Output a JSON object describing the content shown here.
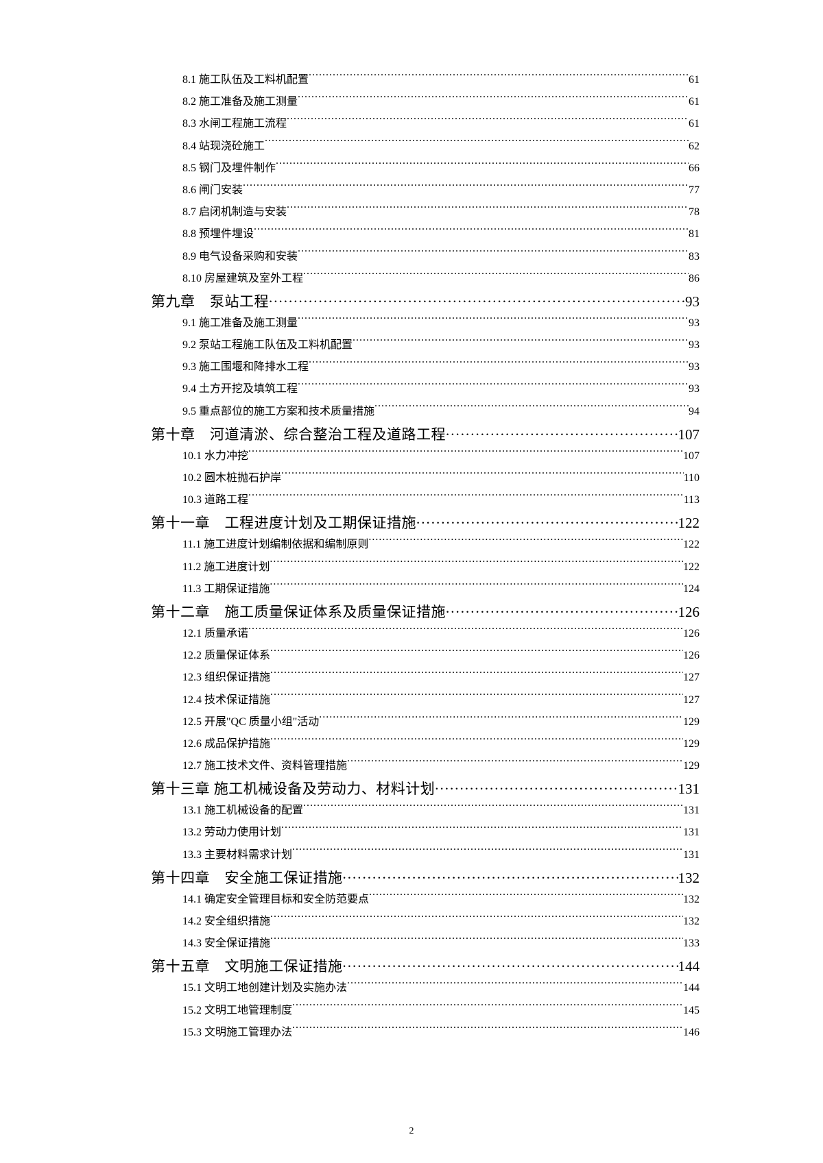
{
  "toc": [
    {
      "level": "section",
      "title": "8.1 施工队伍及工料机配置",
      "page": "61"
    },
    {
      "level": "section",
      "title": "8.2 施工准备及施工测量",
      "page": "61"
    },
    {
      "level": "section",
      "title": "8.3 水闸工程施工流程",
      "page": "61"
    },
    {
      "level": "section",
      "title": "8.4 站现浇砼施工",
      "page": "62"
    },
    {
      "level": "section",
      "title": "8.5 钢门及埋件制作",
      "page": "66"
    },
    {
      "level": "section",
      "title": "8.6 闸门安装",
      "page": "77"
    },
    {
      "level": "section",
      "title": "8.7 启闭机制造与安装",
      "page": "78"
    },
    {
      "level": "section",
      "title": "8.8 预埋件埋设",
      "page": "81"
    },
    {
      "level": "section",
      "title": "8.9 电气设备采购和安装",
      "page": "83"
    },
    {
      "level": "section",
      "title": "8.10 房屋建筑及室外工程",
      "page": "86"
    },
    {
      "level": "chapter",
      "title": "第九章　泵站工程",
      "page": "93"
    },
    {
      "level": "section",
      "title": "9.1 施工准备及施工测量",
      "page": "93"
    },
    {
      "level": "section",
      "title": "9.2 泵站工程施工队伍及工料机配置",
      "page": "93"
    },
    {
      "level": "section",
      "title": "9.3 施工围堰和降排水工程",
      "page": "93"
    },
    {
      "level": "section",
      "title": "9.4 土方开挖及填筑工程",
      "page": "93"
    },
    {
      "level": "section",
      "title": "9.5 重点部位的施工方案和技术质量措施",
      "page": "94"
    },
    {
      "level": "chapter",
      "title": "第十章　河道清淤、综合整治工程及道路工程",
      "page": "107"
    },
    {
      "level": "section",
      "title": "10.1 水力冲挖",
      "page": "107"
    },
    {
      "level": "section",
      "title": "10.2 圆木桩抛石护岸",
      "page": "110"
    },
    {
      "level": "section",
      "title": "10.3 道路工程",
      "page": "113"
    },
    {
      "level": "chapter",
      "title": "第十一章　工程进度计划及工期保证措施",
      "page": "122"
    },
    {
      "level": "section",
      "title": "11.1 施工进度计划编制依据和编制原则",
      "page": "122"
    },
    {
      "level": "section",
      "title": "11.2 施工进度计划",
      "page": "122"
    },
    {
      "level": "section",
      "title": "11.3 工期保证措施",
      "page": "124"
    },
    {
      "level": "chapter",
      "title": "第十二章　施工质量保证体系及质量保证措施",
      "page": "126"
    },
    {
      "level": "section",
      "title": "12.1 质量承诺",
      "page": "126"
    },
    {
      "level": "section",
      "title": "12.2 质量保证体系",
      "page": "126"
    },
    {
      "level": "section",
      "title": "12.3 组织保证措施",
      "page": "127"
    },
    {
      "level": "section",
      "title": "12.4 技术保证措施",
      "page": "127"
    },
    {
      "level": "section",
      "title": "12.5 开展\"QC 质量小组\"活动",
      "page": "129"
    },
    {
      "level": "section",
      "title": "12.6 成品保护措施",
      "page": "129"
    },
    {
      "level": "section",
      "title": "12.7 施工技术文件、资料管理措施",
      "page": "129"
    },
    {
      "level": "chapter",
      "title": "第十三章 施工机械设备及劳动力、材料计划",
      "page": "131"
    },
    {
      "level": "section",
      "title": "13.1 施工机械设备的配置",
      "page": "131"
    },
    {
      "level": "section",
      "title": "13.2 劳动力使用计划",
      "page": "131"
    },
    {
      "level": "section",
      "title": "13.3 主要材料需求计划",
      "page": "131"
    },
    {
      "level": "chapter",
      "title": "第十四章　安全施工保证措施",
      "page": "132"
    },
    {
      "level": "section",
      "title": "14.1 确定安全管理目标和安全防范要点",
      "page": "132"
    },
    {
      "level": "section",
      "title": "14.2 安全组织措施",
      "page": "132"
    },
    {
      "level": "section",
      "title": "14.3 安全保证措施",
      "page": "133"
    },
    {
      "level": "chapter",
      "title": "第十五章　文明施工保证措施",
      "page": "144"
    },
    {
      "level": "section",
      "title": "15.1 文明工地创建计划及实施办法",
      "page": "144"
    },
    {
      "level": "section",
      "title": "15.2 文明工地管理制度",
      "page": "145"
    },
    {
      "level": "section",
      "title": "15.3 文明施工管理办法",
      "page": "146"
    }
  ],
  "footer_page": "2"
}
